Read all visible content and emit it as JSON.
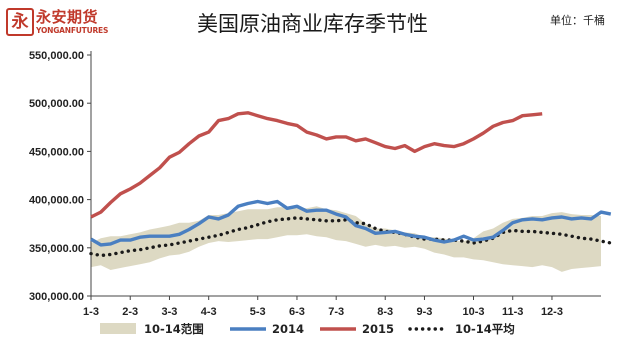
{
  "logo": {
    "mark": "永",
    "text_cn": "永安期货",
    "text_en": "YONGANFUTURES"
  },
  "unit_label": "单位：千桶",
  "chart_data": {
    "type": "line",
    "title": "美国原油商业库存季节性",
    "xlabel": "",
    "ylabel": "",
    "ylim": [
      300000,
      550000
    ],
    "yticks": [
      300000,
      350000,
      400000,
      450000,
      500000,
      550000
    ],
    "ytick_labels": [
      "300,000.00",
      "350,000.00",
      "400,000.00",
      "450,000.00",
      "500,000.00",
      "550,000.00"
    ],
    "xticks": [
      1,
      5,
      9,
      13,
      18,
      22,
      26,
      31,
      35,
      40,
      44,
      48
    ],
    "xtick_labels": [
      "1-3",
      "2-3",
      "3-3",
      "4-3",
      "5-3",
      "6-3",
      "7-3",
      "8-3",
      "9-3",
      "10-3",
      "11-3",
      "12-3"
    ],
    "xlim": [
      1,
      53
    ],
    "grid": false,
    "legend_position": "bottom",
    "colors": {
      "range": "#ddd9c3",
      "s2014": "#4a7fc1",
      "s2015": "#c0504d",
      "avg": "#1a1a1a"
    },
    "series": [
      {
        "name": "10-14范围",
        "kind": "band",
        "low": [
          330000,
          332000,
          327000,
          329000,
          331000,
          333000,
          335000,
          339000,
          342000,
          343000,
          346000,
          351000,
          355000,
          357000,
          356000,
          357000,
          358000,
          359000,
          359000,
          361000,
          363000,
          363000,
          364000,
          362000,
          361000,
          358000,
          357000,
          354000,
          351000,
          353000,
          351000,
          352000,
          350000,
          351000,
          349000,
          345000,
          343000,
          340000,
          340000,
          338000,
          337000,
          335000,
          333000,
          332000,
          331000,
          330000,
          332000,
          330000,
          325000,
          328000,
          329000,
          330000,
          331000
        ],
        "high": [
          355000,
          360000,
          362000,
          362000,
          364000,
          366000,
          369000,
          371000,
          373000,
          376000,
          376000,
          378000,
          384000,
          384000,
          386000,
          388000,
          390000,
          390000,
          390000,
          392000,
          392000,
          391000,
          391000,
          393000,
          390000,
          389000,
          386000,
          383000,
          375000,
          370000,
          370000,
          368000,
          366000,
          365000,
          361000,
          361000,
          360000,
          357000,
          357000,
          360000,
          367000,
          370000,
          376000,
          380000,
          381000,
          383000,
          383000,
          386000,
          387000,
          385000,
          384000,
          384000,
          383000
        ]
      },
      {
        "name": "2014",
        "values": [
          359000,
          353000,
          354000,
          358000,
          358000,
          361000,
          362000,
          362000,
          362000,
          364000,
          369000,
          375000,
          382000,
          380000,
          384000,
          393000,
          396000,
          398000,
          396000,
          398000,
          391000,
          393000,
          388000,
          389000,
          389000,
          385000,
          382000,
          373000,
          370000,
          365000,
          366000,
          367000,
          364000,
          362000,
          361000,
          358000,
          356000,
          358000,
          362000,
          358000,
          359000,
          361000,
          368000,
          376000,
          379000,
          380000,
          379000,
          381000,
          382000,
          380000,
          381000,
          380000,
          387000,
          385000
        ]
      },
      {
        "name": "2015",
        "values": [
          382000,
          387000,
          397000,
          406000,
          411000,
          417000,
          425000,
          433000,
          444000,
          449000,
          458000,
          466000,
          470000,
          482000,
          484000,
          489000,
          490000,
          487000,
          484000,
          482000,
          479000,
          477000,
          470000,
          467000,
          463000,
          465000,
          465000,
          461000,
          463000,
          459000,
          455000,
          453000,
          456000,
          450000,
          455000,
          458000,
          456000,
          455000,
          458000,
          463000,
          469000,
          476000,
          480000,
          482000,
          487000,
          488000,
          489000
        ]
      },
      {
        "name": "10-14平均",
        "values": [
          344000,
          342000,
          343000,
          345000,
          347000,
          348000,
          350000,
          352000,
          353000,
          355000,
          357000,
          359000,
          361000,
          363000,
          366000,
          369000,
          371000,
          374000,
          377000,
          379000,
          380000,
          381000,
          380000,
          379000,
          378000,
          378000,
          379000,
          376000,
          375000,
          370000,
          367000,
          366000,
          364000,
          361000,
          359000,
          359000,
          358000,
          358000,
          357000,
          355000,
          357000,
          360000,
          366000,
          368000,
          367000,
          367000,
          366000,
          365000,
          364000,
          362000,
          360000,
          359000,
          357000,
          355000
        ]
      }
    ]
  }
}
